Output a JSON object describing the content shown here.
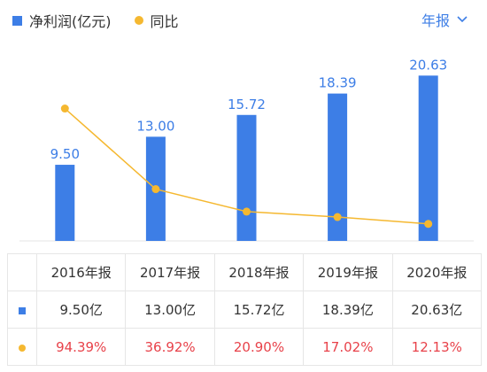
{
  "legend": {
    "bar_label": "净利润(亿元)",
    "line_label": "同比"
  },
  "period_selector": {
    "label": "年报",
    "icon": "chevron-down-icon"
  },
  "colors": {
    "bar": "#3d7ee6",
    "line": "#f5b830",
    "value_label": "#3d7ee6",
    "negative_red": "#e8424a"
  },
  "chart_data": {
    "type": "bar",
    "categories": [
      "2016年报",
      "2017年报",
      "2018年报",
      "2019年报",
      "2020年报"
    ],
    "series": [
      {
        "name": "净利润(亿元)",
        "type": "bar",
        "values": [
          9.5,
          13.0,
          15.72,
          18.39,
          20.63
        ],
        "labels": [
          "9.50",
          "13.00",
          "15.72",
          "18.39",
          "20.63"
        ]
      },
      {
        "name": "同比",
        "type": "line",
        "values": [
          94.39,
          36.92,
          20.9,
          17.02,
          12.13
        ]
      }
    ],
    "ylim": [
      0,
      21
    ],
    "y2lim": [
      0,
      120
    ],
    "grid": false,
    "legend_position": "top-left"
  },
  "table": {
    "headers": [
      "2016年报",
      "2017年报",
      "2018年报",
      "2019年报",
      "2020年报"
    ],
    "profit_row": [
      "9.50亿",
      "13.00亿",
      "15.72亿",
      "18.39亿",
      "20.63亿"
    ],
    "yoy_row": [
      "94.39%",
      "36.92%",
      "20.90%",
      "17.02%",
      "12.13%"
    ]
  }
}
